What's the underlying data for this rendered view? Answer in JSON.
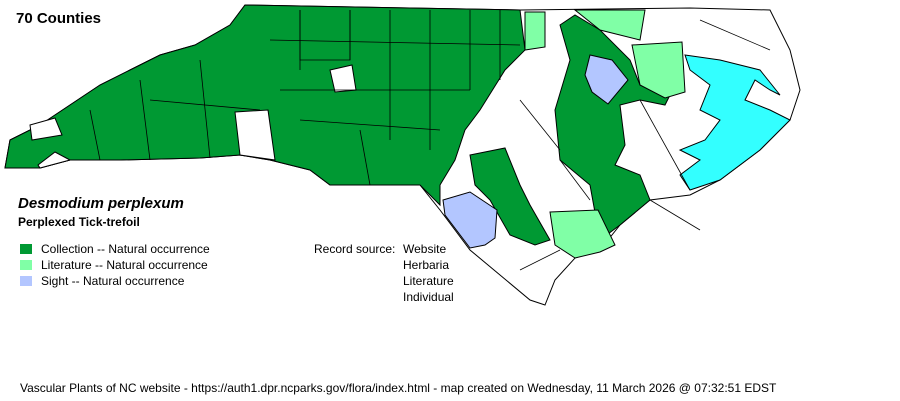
{
  "county_count": "70 Counties",
  "species": {
    "scientific_name": "Desmodium perplexum",
    "common_name": "Perplexed Tick-trefoil"
  },
  "legend": [
    {
      "label": "Collection -- Natural occurrence",
      "color": "#009933"
    },
    {
      "label": "Literature -- Natural occurrence",
      "color": "#80ffa6"
    },
    {
      "label": "Sight -- Natural occurrence",
      "color": "#b3c6ff"
    }
  ],
  "record_source": {
    "label": "Record source:",
    "sources": [
      "Website",
      "Herbaria",
      "Literature",
      "Individual"
    ]
  },
  "water_color": "#33ffff",
  "footer": "Vascular Plants of NC website - https://auth1.dpr.ncparks.gov/flora/index.html - map created on Wednesday, 11 March 2026 @ 07:32:51 EDST"
}
